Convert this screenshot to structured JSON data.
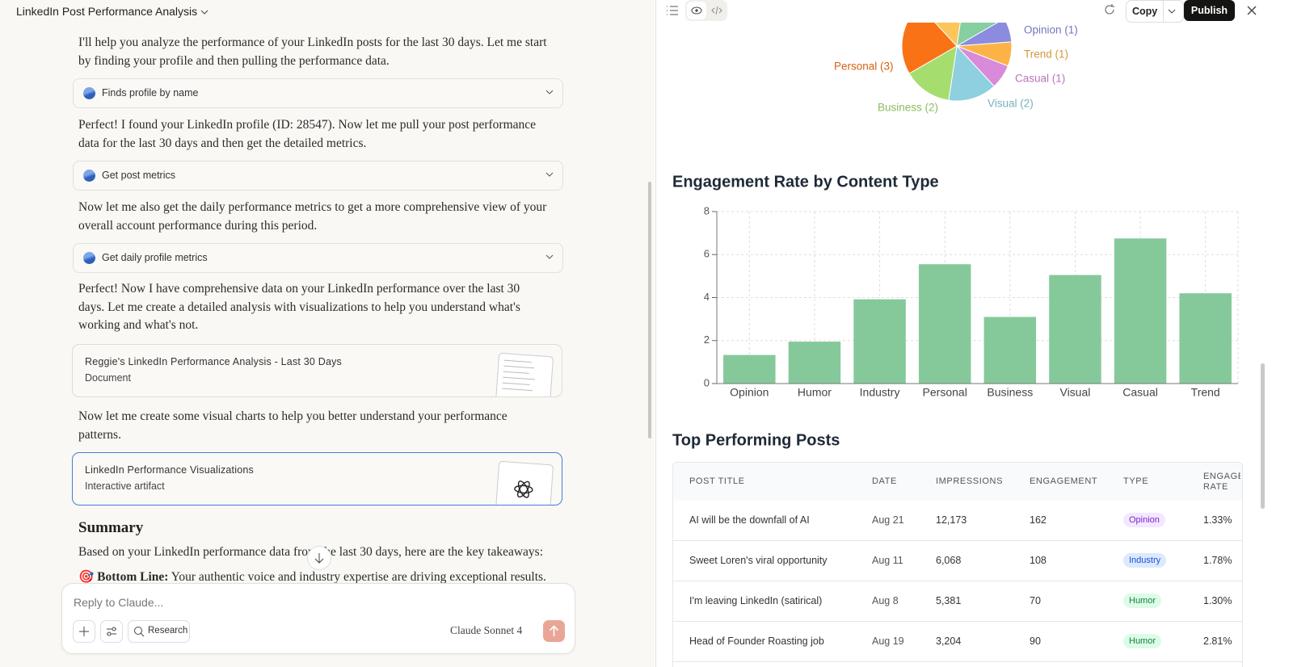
{
  "header": {
    "title": "LinkedIn Post Performance Analysis"
  },
  "messages": [
    "I'll help you analyze the performance of your LinkedIn posts for the last 30 days. Let me start by finding your profile and then pulling the performance data.",
    "Perfect! I found your LinkedIn profile (ID: 28547). Now let me pull your post performance data for the last 30 days and then get the detailed metrics.",
    "Now let me also get the daily performance metrics to get a more comprehensive view of your overall account performance during this period.",
    "Perfect! Now I have comprehensive data on your LinkedIn performance over the last 30 days. Let me create a detailed analysis with visualizations to help you understand what's working and what's not.",
    "Now let me create some visual charts to help you better understand your performance patterns."
  ],
  "tools": [
    "Finds profile by name",
    "Get post metrics",
    "Get daily profile metrics"
  ],
  "artifacts": [
    {
      "title": "Reggie's LinkedIn Performance Analysis - Last 30 Days",
      "kind": "Document"
    },
    {
      "title": "LinkedIn Performance Visualizations",
      "kind": "Interactive artifact"
    }
  ],
  "summary": {
    "heading": "Summary",
    "intro": "Based on your LinkedIn performance data from the last 30 days, here are the key takeaways:",
    "bottom_line_label": "🎯 Bottom Line:",
    "bottom_line_text": "Your authentic voice and industry expertise are driving exceptional results."
  },
  "composer": {
    "placeholder": "Reply to Claude...",
    "research": "Research",
    "model": "Claude Sonnet 4"
  },
  "toolbar": {
    "copy": "Copy",
    "publish": "Publish"
  },
  "chart_data": [
    {
      "type": "pie",
      "categories": [
        "Opinion (1)",
        "Trend (1)",
        "Casual (1)",
        "Visual (2)",
        "Business (2)",
        "Personal (3)",
        null,
        null
      ],
      "values": [
        1,
        1,
        1,
        2,
        2,
        3,
        2,
        2
      ],
      "colors": [
        "#8b8be0",
        "#fbb347",
        "#d98ad9",
        "#8ecfe0",
        "#a5dd6f",
        "#f97316",
        "#fcc55a",
        "#86cfa0"
      ]
    },
    {
      "type": "bar",
      "title": "Engagement Rate by Content Type",
      "categories": [
        "Opinion",
        "Humor",
        "Industry",
        "Personal",
        "Business",
        "Visual",
        "Casual",
        "Trend"
      ],
      "values": [
        1.33,
        1.95,
        3.92,
        5.55,
        3.1,
        5.05,
        6.75,
        4.2
      ],
      "color": "#85c99b",
      "ylim": [
        0,
        8
      ],
      "yticks": [
        0,
        2,
        4,
        6,
        8
      ],
      "grid": true
    }
  ],
  "table": {
    "title": "Top Performing Posts",
    "headers": [
      "POST TITLE",
      "DATE",
      "IMPRESSIONS",
      "ENGAGEMENT",
      "TYPE",
      "ENGAGEMENT RATE"
    ],
    "rows": [
      [
        "AI will be the downfall of AI",
        "Aug 21",
        "12,173",
        "162",
        "Opinion",
        "1.33%"
      ],
      [
        "Sweet Loren's viral opportunity",
        "Aug 11",
        "6,068",
        "108",
        "Industry",
        "1.78%"
      ],
      [
        "I'm leaving LinkedIn (satirical)",
        "Aug 8",
        "5,381",
        "70",
        "Humor",
        "1.30%"
      ],
      [
        "Head of Founder Roasting job",
        "Aug 19",
        "3,204",
        "90",
        "Humor",
        "2.81%"
      ]
    ],
    "type_colors": {
      "Opinion": [
        "#f3e8ff",
        "#7e22ce"
      ],
      "Industry": [
        "#dbeafe",
        "#1d4ed8"
      ],
      "Humor": [
        "#dcfce7",
        "#15803d"
      ]
    }
  }
}
